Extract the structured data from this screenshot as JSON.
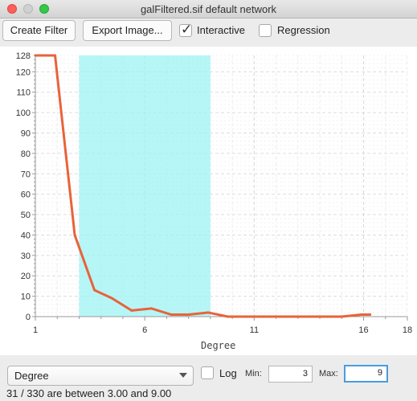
{
  "window": {
    "title": "galFiltered.sif default network"
  },
  "toolbar": {
    "create_filter_label": "Create Filter",
    "export_image_label": "Export Image...",
    "interactive_label": "Interactive",
    "interactive_checked": true,
    "regression_label": "Regression",
    "regression_checked": false
  },
  "chart_data": {
    "type": "line",
    "xlabel": "Degree",
    "ylabel": "",
    "xlim": [
      1,
      18
    ],
    "ylim": [
      0,
      128
    ],
    "x_ticks": [
      "1",
      "6",
      "11",
      "16"
    ],
    "x_end_tick": "18",
    "y_ticks": [
      "0",
      "10",
      "20",
      "30",
      "40",
      "50",
      "60",
      "70",
      "80",
      "90",
      "100",
      "110",
      "120",
      "128"
    ],
    "grid": true,
    "x": [
      1,
      1.9,
      2.8,
      3.7,
      4.5,
      5.4,
      6.3,
      7.2,
      8.0,
      8.9,
      9.8,
      10.6,
      11.5,
      12.4,
      13.3,
      14.1,
      15.0,
      15.9,
      16.3
    ],
    "values": [
      128,
      128,
      40,
      13,
      9,
      3,
      4,
      1,
      1,
      2,
      0,
      0,
      0,
      0,
      0,
      0,
      0,
      1,
      1
    ],
    "line_color": "#e8633a",
    "selection_range": [
      3.0,
      9.0
    ],
    "selection_color": "#9ff3f3"
  },
  "controls": {
    "attribute_selected": "Degree",
    "log_label": "Log",
    "log_checked": false,
    "min_label": "Min:",
    "min_value": "3",
    "max_label": "Max:",
    "max_value": "9"
  },
  "status": {
    "text": "31 / 330 are between 3.00 and 9.00"
  }
}
